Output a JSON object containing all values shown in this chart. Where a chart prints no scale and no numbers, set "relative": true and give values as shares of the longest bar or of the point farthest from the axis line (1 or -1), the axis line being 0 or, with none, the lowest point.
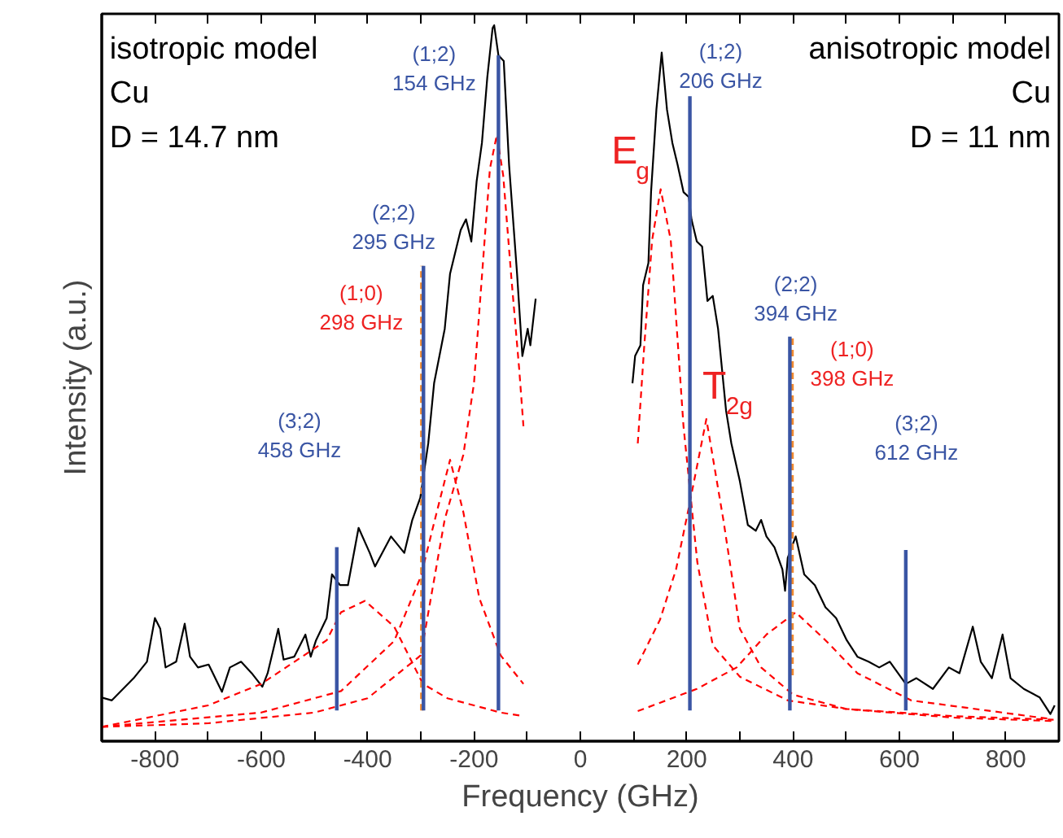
{
  "chart_data": {
    "type": "line",
    "relative": true,
    "xlabel": "Frequency (GHz)",
    "ylabel": "Intensity (a.u.)",
    "xlim": [
      -900,
      900
    ],
    "xticks": [
      {
        "value": -900,
        "label": null
      },
      -800,
      {
        "value": -700,
        "label": null
      },
      -600,
      {
        "value": -500,
        "label": null
      },
      -400,
      {
        "value": -300,
        "label": null
      },
      -200,
      {
        "value": -100,
        "label": null
      },
      0,
      {
        "value": 100,
        "label": null
      },
      200,
      {
        "value": 300,
        "label": null
      },
      400,
      {
        "value": 500,
        "label": null
      },
      600,
      {
        "value": 700,
        "label": null
      },
      800,
      {
        "value": 900,
        "label": null
      }
    ],
    "grid": false,
    "marker": "none",
    "line_style": "solid",
    "series": [
      {
        "color": "#000000",
        "x": [
          -900,
          -881,
          -840,
          -815,
          -800,
          -790,
          -780,
          -760,
          -744,
          -734,
          -719,
          -699,
          -674,
          -659,
          -638,
          -618,
          -598,
          -588,
          -568,
          -558,
          -538,
          -517,
          -507,
          -497,
          -477,
          -467,
          -452,
          -437,
          -417,
          -396,
          -386,
          -356,
          -331,
          -316,
          -301,
          -286,
          -275,
          -255,
          -245,
          -225,
          -215,
          -205,
          -195,
          -185,
          -175,
          -165,
          -162,
          -154,
          -144,
          -134,
          -119,
          -109,
          -99,
          -94,
          -84
        ],
        "values": [
          0.061,
          0.057,
          0.088,
          0.111,
          0.172,
          0.157,
          0.103,
          0.111,
          0.164,
          0.118,
          0.103,
          0.107,
          0.069,
          0.103,
          0.111,
          0.095,
          0.076,
          0.095,
          0.157,
          0.114,
          0.118,
          0.149,
          0.118,
          0.141,
          0.172,
          0.233,
          0.218,
          0.218,
          0.298,
          0.263,
          0.244,
          0.286,
          0.263,
          0.309,
          0.34,
          0.416,
          0.5,
          0.576,
          0.653,
          0.714,
          0.729,
          0.698,
          0.782,
          0.836,
          0.927,
          0.996,
          1.0,
          0.958,
          0.95,
          0.805,
          0.653,
          0.538,
          0.576,
          0.553,
          0.618
        ]
      },
      {
        "color": "#000000",
        "x": [
          98,
          103,
          113,
          118,
          128,
          133,
          143,
          153,
          163,
          173,
          183,
          194,
          204,
          209,
          219,
          229,
          239,
          249,
          259,
          269,
          274,
          284,
          300,
          315,
          330,
          340,
          350,
          365,
          380,
          385,
          390,
          405,
          421,
          441,
          461,
          481,
          501,
          521,
          542,
          562,
          582,
          612,
          632,
          663,
          693,
          713,
          738,
          753,
          774,
          794,
          809,
          834,
          864,
          884,
          892
        ],
        "values": [
          0.5,
          0.538,
          0.553,
          0.637,
          0.668,
          0.767,
          0.882,
          0.962,
          0.882,
          0.836,
          0.805,
          0.767,
          0.76,
          0.729,
          0.698,
          0.691,
          0.615,
          0.622,
          0.576,
          0.5,
          0.462,
          0.416,
          0.363,
          0.302,
          0.294,
          0.309,
          0.286,
          0.271,
          0.24,
          0.21,
          0.256,
          0.286,
          0.233,
          0.218,
          0.187,
          0.172,
          0.141,
          0.118,
          0.111,
          0.103,
          0.111,
          0.08,
          0.088,
          0.073,
          0.103,
          0.095,
          0.16,
          0.111,
          0.088,
          0.149,
          0.088,
          0.073,
          0.061,
          0.038,
          0.05
        ]
      },
      {
        "color": "#ff0000",
        "line_style": "dashed",
        "x": [
          -900,
          -700,
          -500,
          -400,
          -300,
          -255,
          -220,
          -200,
          -185,
          -170,
          -157,
          -145,
          -130,
          -115,
          -107
        ],
        "values": [
          0.02,
          0.025,
          0.04,
          0.06,
          0.12,
          0.31,
          0.4,
          0.5,
          0.65,
          0.8,
          0.847,
          0.79,
          0.65,
          0.52,
          0.44
        ]
      },
      {
        "color": "#ff0000",
        "line_style": "dashed",
        "x": [
          -900,
          -600,
          -450,
          -350,
          -300,
          -270,
          -245,
          -220,
          -190,
          -150,
          -107
        ],
        "values": [
          0.02,
          0.04,
          0.07,
          0.14,
          0.23,
          0.32,
          0.393,
          0.32,
          0.2,
          0.12,
          0.08
        ]
      },
      {
        "color": "#ff0000",
        "line_style": "dashed",
        "x": [
          -900,
          -700,
          -600,
          -477,
          -450,
          -405,
          -350,
          -296,
          -250,
          -200,
          -150,
          -107
        ],
        "values": [
          0.02,
          0.05,
          0.08,
          0.141,
          0.18,
          0.196,
          0.16,
          0.08,
          0.06,
          0.05,
          0.04,
          0.035
        ]
      },
      {
        "color": "#ff0000",
        "line_style": "dashed",
        "x": [
          108,
          120,
          135,
          151,
          170,
          194,
          220,
          249,
          300,
          390,
          500,
          700,
          890
        ],
        "values": [
          0.416,
          0.55,
          0.7,
          0.771,
          0.7,
          0.44,
          0.25,
          0.134,
          0.09,
          0.057,
          0.045,
          0.035,
          0.03
        ]
      },
      {
        "color": "#ff0000",
        "line_style": "dashed",
        "x": [
          108,
          150,
          180,
          205,
          237,
          269,
          300,
          340,
          400,
          500,
          700,
          890
        ],
        "values": [
          0.107,
          0.17,
          0.24,
          0.33,
          0.45,
          0.309,
          0.157,
          0.103,
          0.065,
          0.045,
          0.033,
          0.028
        ]
      },
      {
        "color": "#ff0000",
        "line_style": "dashed",
        "x": [
          108,
          219,
          294,
          350,
          405,
          461,
          521,
          622,
          884
        ],
        "values": [
          0.042,
          0.073,
          0.103,
          0.149,
          0.18,
          0.141,
          0.095,
          0.057,
          0.031
        ]
      },
      {
        "color": "#f08a30",
        "line_style": "dashed",
        "x": [
          -298,
          -298
        ],
        "values": [
          0.043,
          0.664
        ]
      },
      {
        "color": "#f08a30",
        "line_style": "dashed",
        "x": [
          398,
          398
        ],
        "values": [
          0.092,
          0.565
        ]
      },
      {
        "color": "#3a55a4",
        "x": [
          -458,
          -458
        ],
        "values": [
          0.043,
          0.271
        ]
      },
      {
        "color": "#3a55a4",
        "x": [
          -295,
          -295
        ],
        "values": [
          0.043,
          0.664
        ]
      },
      {
        "color": "#3a55a4",
        "x": [
          -154,
          -154
        ],
        "values": [
          0.043,
          0.958
        ]
      },
      {
        "color": "#3a55a4",
        "x": [
          206,
          206
        ],
        "values": [
          0.043,
          0.901
        ]
      },
      {
        "color": "#3a55a4",
        "x": [
          394,
          394
        ],
        "values": [
          0.043,
          0.565
        ]
      },
      {
        "color": "#3a55a4",
        "x": [
          612,
          612
        ],
        "values": [
          0.043,
          0.267
        ]
      }
    ],
    "annotations": [
      "isotropic model\nCu\nD = 14.7 nm",
      "anisotropic model\nCu\nD = 11 nm",
      "(1;2)\n154 GHz",
      "(2;2)\n295 GHz",
      "(1;0)\n298 GHz",
      "(3;2)\n458 GHz",
      "(1;2)\n206 GHz",
      "(2;2)\n394 GHz",
      "(1;0)\n398 GHz",
      "(3;2)\n612 GHz",
      "E$_{g}$",
      "T$_{2g}$"
    ]
  }
}
